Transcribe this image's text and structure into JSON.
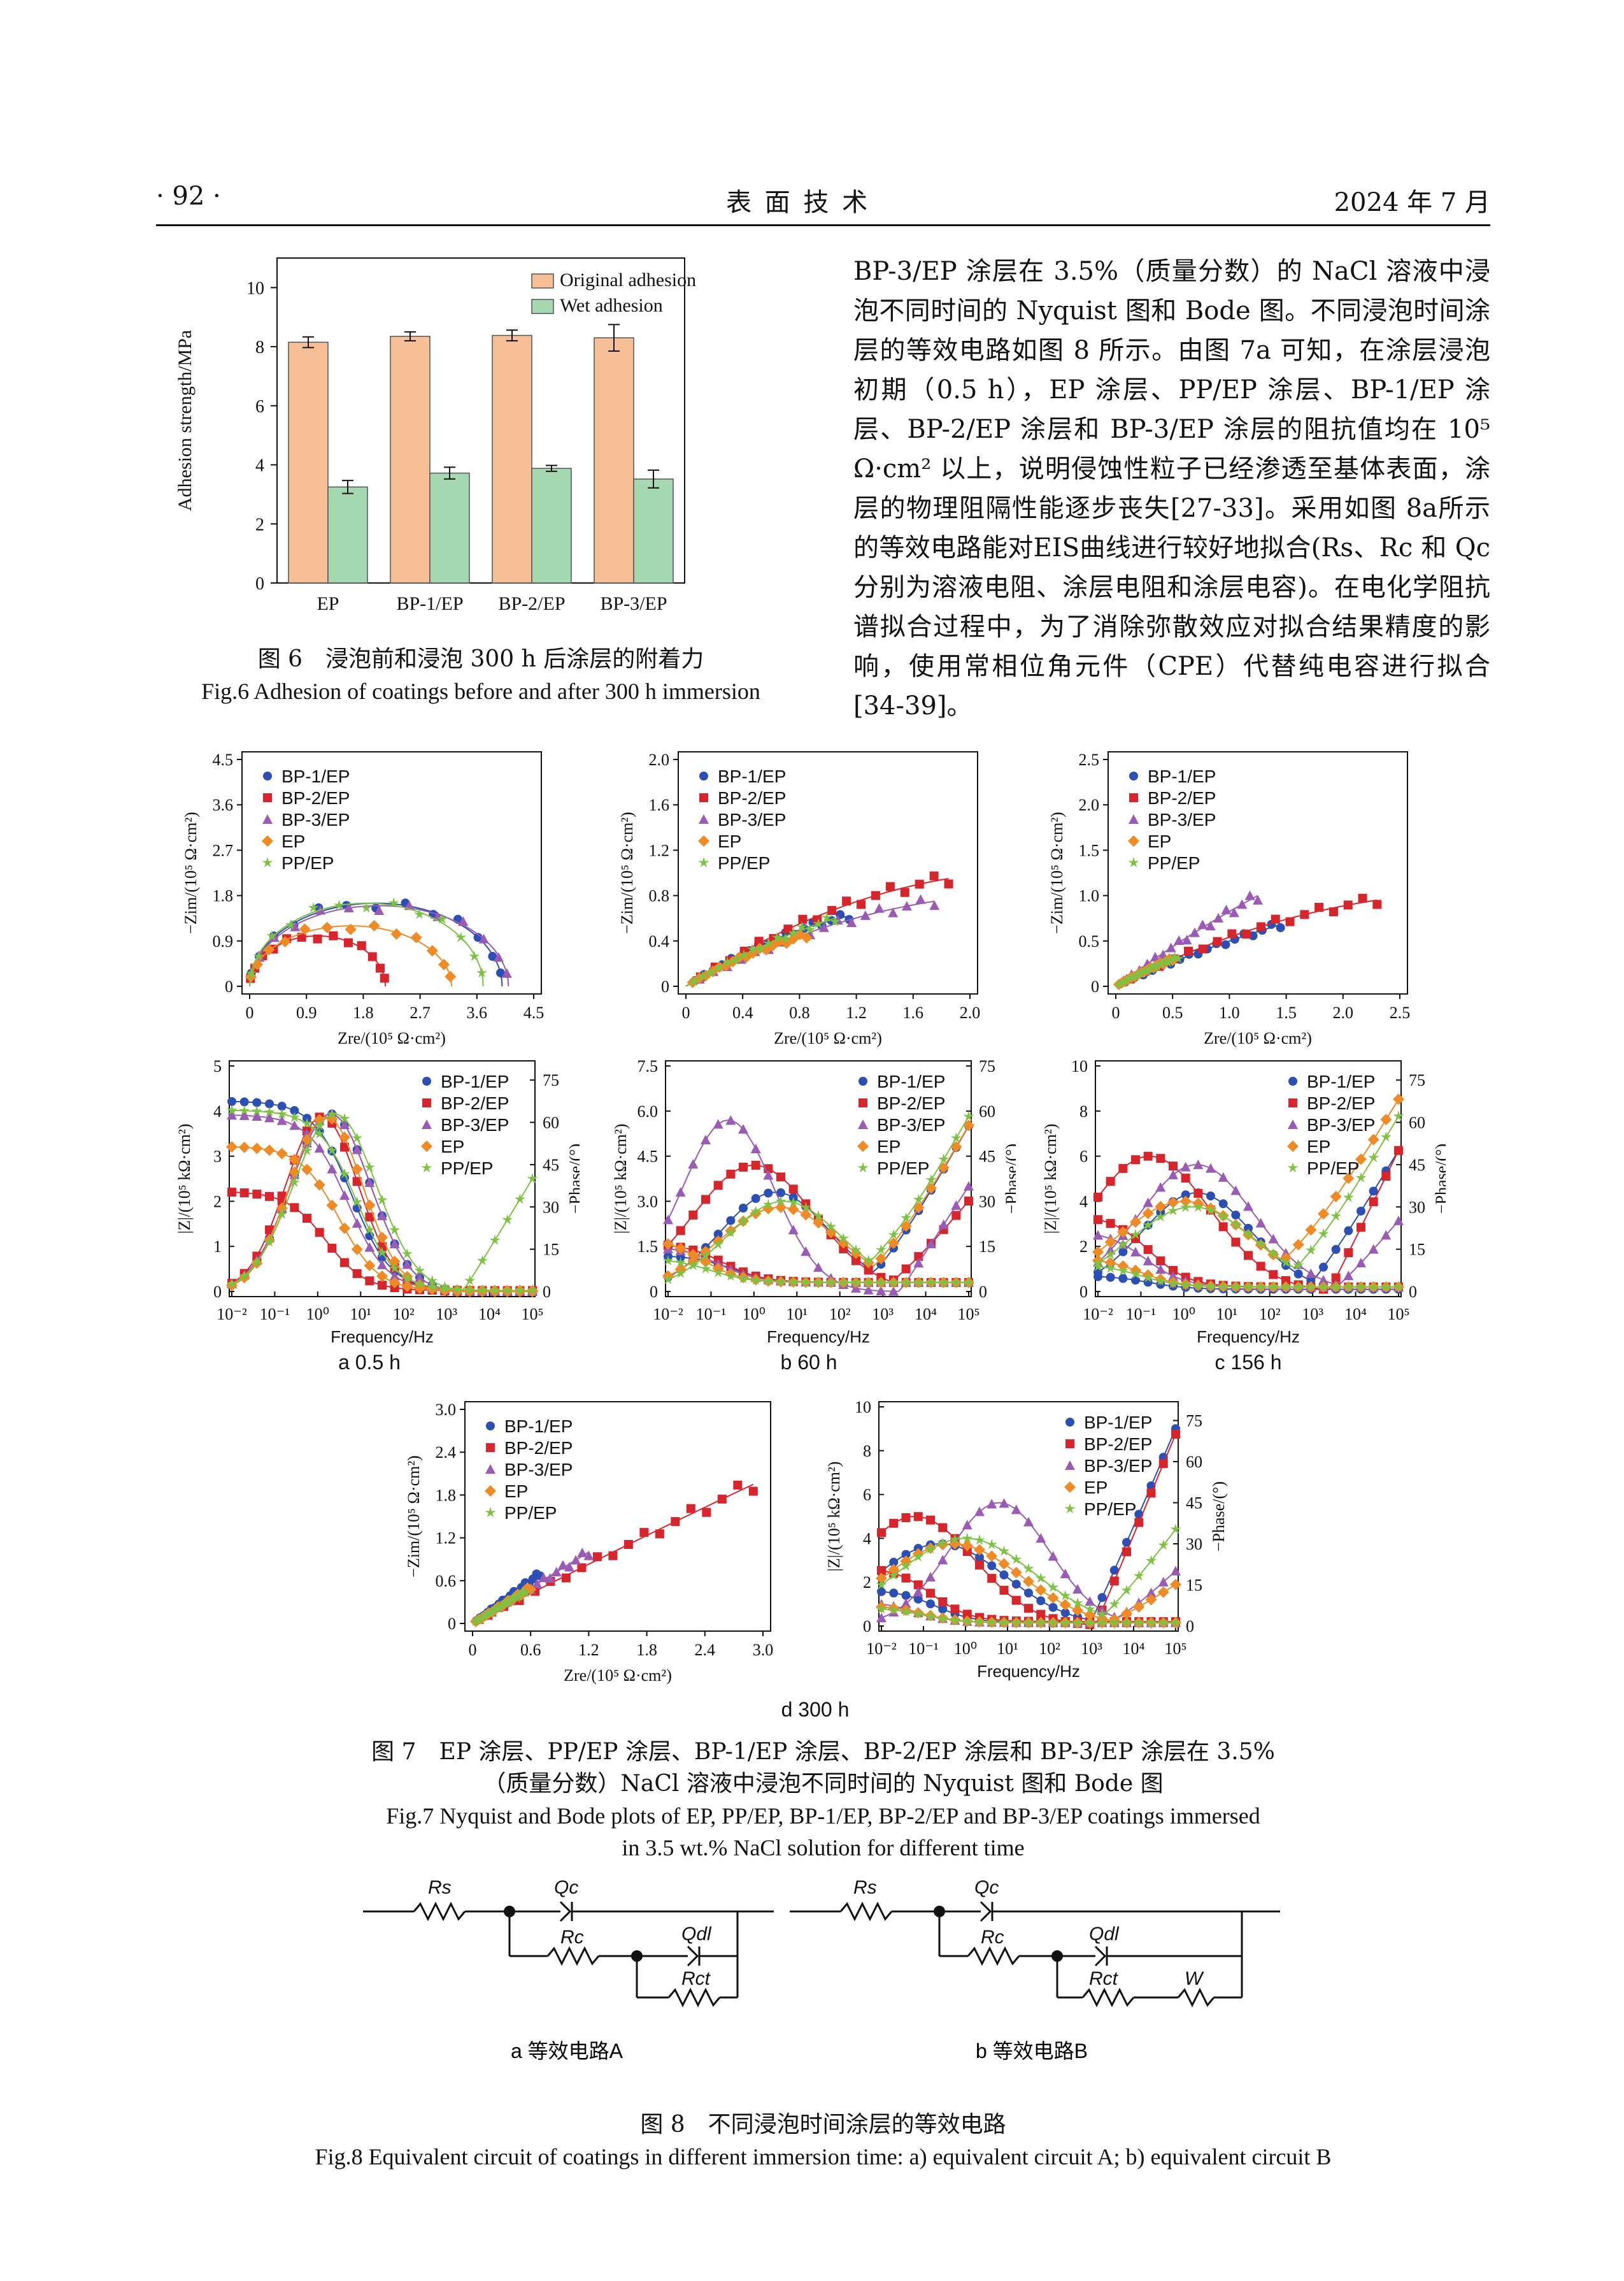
{
  "header": {
    "page_number": "· 92 ·",
    "journal": "表  面  技  术",
    "date": "2024 年 7 月"
  },
  "body_text": [
    "BP-3/EP 涂层在 3.5%（质量分数）的 NaCl 溶液中浸泡不同时间的 Nyquist 图和 Bode 图。不同浸泡时间涂层的等效电路如图 8 所示。由图 7a 可知，在涂层浸泡初期（0.5 h），EP 涂层、PP/EP 涂层、BP-1/EP 涂层、BP-2/EP 涂层和 BP-3/EP 涂层的阻抗值均在 10⁵ Ω·cm² 以上，说明侵蚀性粒子已经渗透至基体表面，涂层的物理阻隔性能逐步丧失[27-33]。采用如图 8a所示的等效电路能对EIS曲线进行较好地拟合(Rs、Rc 和 Qc 分别为溶液电阻、涂层电阻和涂层电容)。在电化学阻抗谱拟合过程中，为了消除弥散效应对拟合结果精度的影响，使用常相位角元件（CPE）代替纯电容进行拟合[34-39]。"
  ],
  "fig6": {
    "caption_zh": "图 6　浸泡前和浸泡 300 h 后涂层的附着力",
    "caption_en": "Fig.6 Adhesion of coatings before and after 300 h immersion"
  },
  "fig7": {
    "caption_zh_1": "图 7　EP 涂层、PP/EP 涂层、BP-1/EP 涂层、BP-2/EP 涂层和 BP-3/EP 涂层在 3.5%",
    "caption_zh_2": "（质量分数）NaCl 溶液中浸泡不同时间的 Nyquist 图和 Bode 图",
    "caption_en_1": "Fig.7 Nyquist and Bode plots of EP, PP/EP, BP-1/EP, BP-2/EP and BP-3/EP coatings immersed",
    "caption_en_2": "in 3.5 wt.% NaCl solution for different time",
    "sub_a": "a  0.5 h",
    "sub_b": "b  60 h",
    "sub_c": "c  156 h",
    "sub_d": "d  300 h",
    "nyq_xlabel": "Zre/(10⁵ Ω·cm²)",
    "nyq_ylabel": "−Zim/(10⁵ Ω·cm²)",
    "bode_xlabel": "Frequency/Hz",
    "bode_ylabel_a": "|Z|/(10⁵ kΩ·cm²)",
    "bode_ylabel_y2": "−Phase/(°)"
  },
  "fig8": {
    "caption_zh": "图 8　不同浸泡时间涂层的等效电路",
    "caption_en": "Fig.8 Equivalent circuit of coatings in different immersion time: a) equivalent circuit A; b) equivalent circuit B",
    "sub_a": "a  等效电路A",
    "sub_b": "b  等效电路B",
    "labels": {
      "Rs": "Rs",
      "Qc": "Qc",
      "Rc": "Rc",
      "Qdl": "Qdl",
      "Rct": "Rct",
      "W": "W"
    }
  },
  "legend_series": [
    "BP-1/EP",
    "BP-2/EP",
    "BP-3/EP",
    "EP",
    "PP/EP"
  ],
  "colors": {
    "BP-1/EP": "#2b4fb5",
    "BP-2/EP": "#d8242b",
    "BP-3/EP": "#9a5bb5",
    "EP": "#f08a24",
    "PP/EP": "#7dc242"
  },
  "chart_data": [
    {
      "type": "bar",
      "id": "fig6",
      "categories": [
        "EP",
        "BP-1/EP",
        "BP-2/EP",
        "BP-3/EP"
      ],
      "series": [
        {
          "name": "Original adhesion",
          "values": [
            8.15,
            8.35,
            8.38,
            8.3
          ],
          "errors": [
            0.18,
            0.15,
            0.18,
            0.45
          ]
        },
        {
          "name": "Wet adhesion",
          "values": [
            3.25,
            3.72,
            3.88,
            3.52
          ],
          "errors": [
            0.22,
            0.2,
            0.1,
            0.3
          ]
        }
      ],
      "ylabel": "Adhesion strength/MPa",
      "ylim": [
        0,
        11
      ],
      "yticks": [
        "0",
        "2",
        "4",
        "6",
        "8",
        "10"
      ],
      "colors": [
        "#f6bf98",
        "#a6d9b2"
      ],
      "legend": "top-right"
    },
    {
      "type": "scatter",
      "id": "nyq_a",
      "xlim": [
        0,
        4.5
      ],
      "ylim": [
        0,
        4.5
      ],
      "xticks": [
        "0",
        "0.9",
        "1.8",
        "2.7",
        "3.6",
        "4.5"
      ],
      "yticks": [
        "0",
        "0.9",
        "1.8",
        "2.7",
        "3.6",
        "4.5"
      ],
      "semicircles": [
        {
          "name": "BP-1/EP",
          "d": 4.0,
          "h": 1.65
        },
        {
          "name": "BP-2/EP",
          "d": 2.15,
          "h": 1.0
        },
        {
          "name": "BP-3/EP",
          "d": 4.1,
          "h": 1.6
        },
        {
          "name": "EP",
          "d": 3.2,
          "h": 1.2
        },
        {
          "name": "PP/EP",
          "d": 3.7,
          "h": 1.65
        }
      ]
    },
    {
      "type": "scatter",
      "id": "nyq_b",
      "xlim": [
        0,
        2.0
      ],
      "ylim": [
        0,
        2.0
      ],
      "xticks": [
        "0",
        "0.4",
        "0.8",
        "1.2",
        "1.6",
        "2.0"
      ],
      "yticks": [
        "0",
        "0.4",
        "0.8",
        "1.2",
        "1.6",
        "2.0"
      ],
      "curves": [
        {
          "name": "BP-1/EP",
          "end": [
            1.15,
            0.62
          ],
          "k": 0.5
        },
        {
          "name": "BP-2/EP",
          "end": [
            1.85,
            0.95
          ],
          "k": 0.6
        },
        {
          "name": "BP-3/EP",
          "end": [
            1.75,
            0.75
          ],
          "k": 0.55
        },
        {
          "name": "EP",
          "end": [
            0.85,
            0.45
          ],
          "k": 0.4
        },
        {
          "name": "PP/EP",
          "end": [
            1.05,
            0.6
          ],
          "k": 0.3
        }
      ]
    },
    {
      "type": "scatter",
      "id": "nyq_c",
      "xlim": [
        0,
        2.5
      ],
      "ylim": [
        0,
        2.5
      ],
      "xticks": [
        "0",
        "0.5",
        "1.0",
        "1.5",
        "2.0",
        "2.5"
      ],
      "yticks": [
        "0",
        "0.5",
        "1.0",
        "1.5",
        "2.0",
        "2.5"
      ],
      "curves": [
        {
          "name": "BP-1/EP",
          "end": [
            1.45,
            0.68
          ],
          "k": 0.2
        },
        {
          "name": "BP-2/EP",
          "end": [
            2.3,
            0.95
          ],
          "k": 0.55
        },
        {
          "name": "BP-3/EP",
          "end": [
            1.25,
            1.0
          ],
          "k": 0.15
        },
        {
          "name": "EP",
          "end": [
            0.5,
            0.3
          ],
          "k": 0.2
        },
        {
          "name": "PP/EP",
          "end": [
            0.55,
            0.32
          ],
          "k": 0.2
        }
      ]
    },
    {
      "type": "scatter",
      "id": "nyq_d",
      "xlim": [
        0,
        3.0
      ],
      "ylim": [
        0,
        3.0
      ],
      "xticks": [
        "0",
        "0.6",
        "1.2",
        "1.8",
        "2.4",
        "3.0"
      ],
      "yticks": [
        "0",
        "0.6",
        "1.2",
        "1.8",
        "2.4",
        "3.0"
      ],
      "curves": [
        {
          "name": "BP-1/EP",
          "end": [
            0.7,
            0.7
          ],
          "k": 0.0
        },
        {
          "name": "BP-2/EP",
          "end": [
            2.9,
            1.95
          ],
          "k": 0.05
        },
        {
          "name": "BP-3/EP",
          "end": [
            1.2,
            1.0
          ],
          "k": 0.0
        },
        {
          "name": "EP",
          "end": [
            0.6,
            0.5
          ],
          "k": 0.0
        },
        {
          "name": "PP/EP",
          "end": [
            0.55,
            0.45
          ],
          "k": 0.0
        }
      ]
    },
    {
      "type": "line",
      "id": "bode_a",
      "xlim": [
        -2,
        5
      ],
      "ylim": [
        0,
        5
      ],
      "y2lim": [
        0,
        80
      ],
      "xticks": [
        "10⁻²",
        "10⁻¹",
        "10⁰",
        "10¹",
        "10²",
        "10³",
        "10⁴",
        "10⁵"
      ],
      "yticks": [
        "0",
        "1",
        "2",
        "3",
        "4",
        "5"
      ],
      "y2ticks": [
        "0",
        "15",
        "30",
        "45",
        "60",
        "75"
      ],
      "mag": [
        {
          "name": "BP-1/EP",
          "z0": 4.2,
          "knee": 0.7
        },
        {
          "name": "BP-2/EP",
          "z0": 2.2,
          "knee": 0.0
        },
        {
          "name": "BP-3/EP",
          "z0": 3.9,
          "knee": 0.7
        },
        {
          "name": "EP",
          "z0": 3.2,
          "knee": 0.5
        },
        {
          "name": "PP/EP",
          "z0": 4.0,
          "knee": 0.9
        }
      ],
      "phase": [
        {
          "name": "BP-1/EP",
          "peak": 63,
          "at": 0.3,
          "w": 1.3
        },
        {
          "name": "BP-2/EP",
          "peak": 62,
          "at": 0.1,
          "w": 1.2
        },
        {
          "name": "BP-3/EP",
          "peak": 63,
          "at": 0.3,
          "w": 1.3
        },
        {
          "name": "EP",
          "peak": 62,
          "at": 0.2,
          "w": 1.2
        },
        {
          "name": "PP/EP",
          "peak": 63,
          "at": 0.4,
          "w": 1.35
        }
      ]
    },
    {
      "type": "line",
      "id": "bode_b",
      "xlim": [
        -2,
        5
      ],
      "ylim": [
        0,
        7.5
      ],
      "y2lim": [
        0,
        75
      ],
      "xticks": [
        "10⁻²",
        "10⁻¹",
        "10⁰",
        "10¹",
        "10²",
        "10³",
        "10⁴",
        "10⁵"
      ],
      "yticks": [
        "0",
        "1.5",
        "3.0",
        "4.5",
        "6.0",
        "7.5"
      ],
      "y2ticks": [
        "0",
        "15",
        "30",
        "45",
        "60",
        "75"
      ]
    },
    {
      "type": "line",
      "id": "bode_c",
      "xlim": [
        -2,
        5
      ],
      "ylim": [
        0,
        10
      ],
      "y2lim": [
        0,
        80
      ],
      "xticks": [
        "10⁻²",
        "10⁻¹",
        "10⁰",
        "10¹",
        "10²",
        "10³",
        "10⁴",
        "10⁵"
      ],
      "yticks": [
        "0",
        "2",
        "4",
        "6",
        "8",
        "10"
      ],
      "y2ticks": [
        "0",
        "15",
        "30",
        "45",
        "60",
        "75"
      ]
    },
    {
      "type": "line",
      "id": "bode_d",
      "xlim": [
        -2,
        5
      ],
      "ylim": [
        0,
        10
      ],
      "y2lim": [
        0,
        80
      ],
      "xticks": [
        "10⁻²",
        "10⁻¹",
        "10⁰",
        "10¹",
        "10²",
        "10³",
        "10⁴",
        "10⁵"
      ],
      "yticks": [
        "0",
        "2",
        "4",
        "6",
        "8",
        "10"
      ],
      "y2ticks": [
        "0",
        "15",
        "30",
        "45",
        "60",
        "75"
      ]
    }
  ]
}
